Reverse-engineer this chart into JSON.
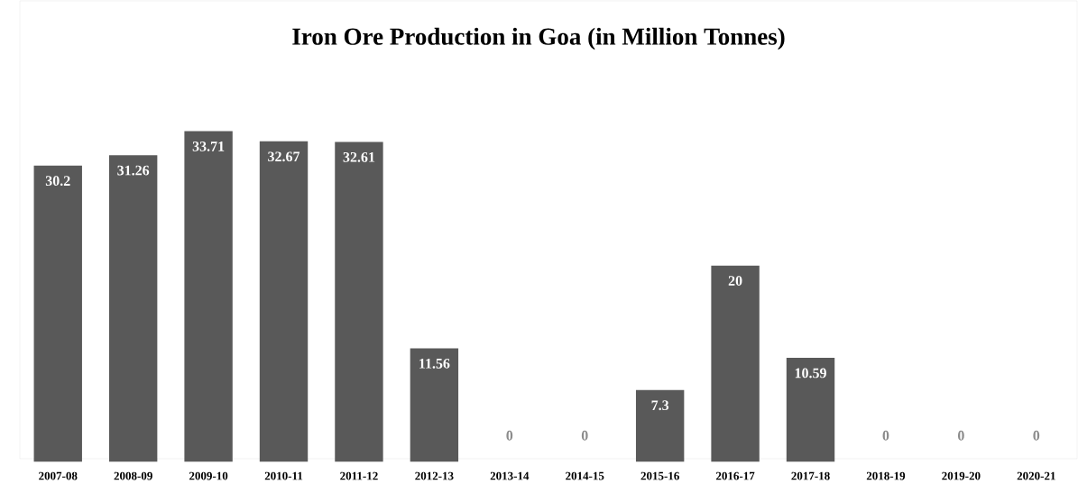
{
  "chart_data": {
    "type": "bar",
    "title": "Iron Ore Production in Goa (in Million Tonnes)",
    "categories": [
      "2007-08",
      "2008-09",
      "2009-10",
      "2010-11",
      "2011-12",
      "2012-13",
      "2013-14",
      "2014-15",
      "2015-16",
      "2016-17",
      "2017-18",
      "2018-19",
      "2019-20",
      "2020-21"
    ],
    "values": [
      30.2,
      31.26,
      33.71,
      32.67,
      32.61,
      11.56,
      0,
      0,
      7.3,
      20,
      10.59,
      0,
      0,
      0
    ],
    "color": "#595959",
    "data_labels": true
  }
}
